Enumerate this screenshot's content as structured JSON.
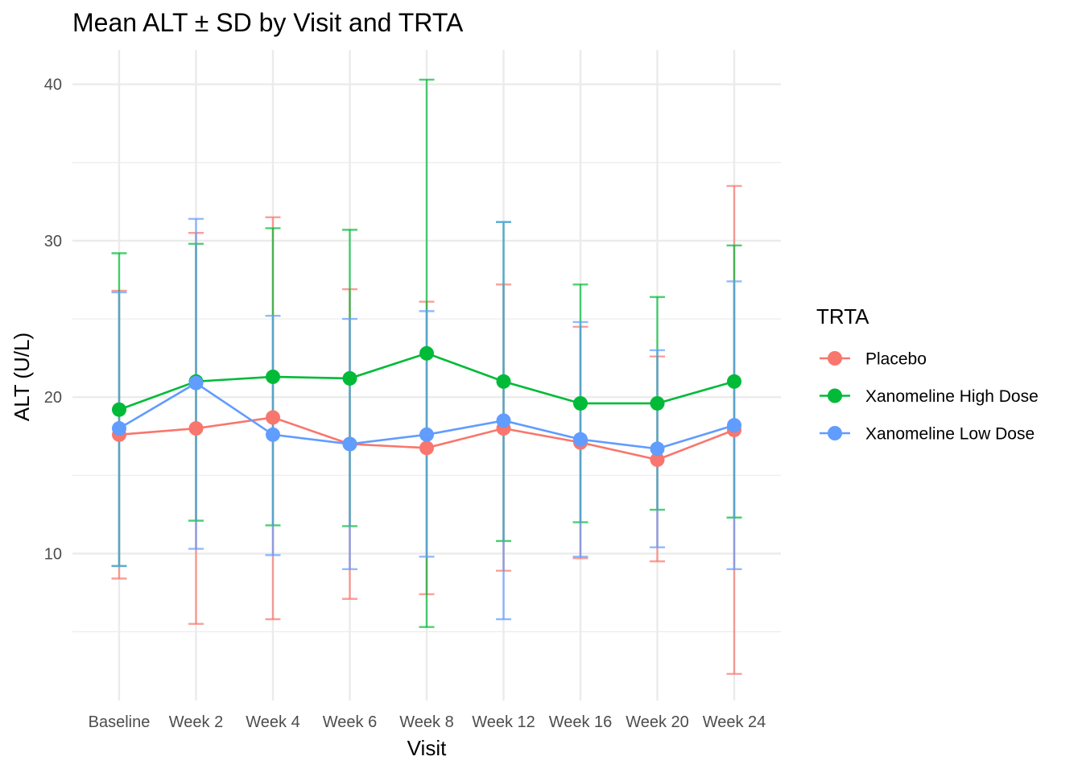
{
  "chart_data": {
    "type": "line",
    "title": "Mean ALT ± SD by Visit and TRTA",
    "xlabel": "Visit",
    "ylabel": "ALT (U/L)",
    "categories": [
      "Baseline",
      "Week 2",
      "Week 4",
      "Week 6",
      "Week 8",
      "Week 12",
      "Week 16",
      "Week 20",
      "Week 24"
    ],
    "ylim": [
      0.6,
      42.2
    ],
    "y_major_ticks": [
      10,
      20,
      30,
      40
    ],
    "y_minor_ticks": [
      5,
      15,
      25,
      35
    ],
    "grid": true,
    "error_bars": "mean ± SD",
    "legend": {
      "title": "TRTA",
      "position": "right"
    },
    "series": [
      {
        "name": "Placebo",
        "color": "#F8766D",
        "mean": [
          17.6,
          18.0,
          18.7,
          17.0,
          16.75,
          18.0,
          17.1,
          16.0,
          17.9
        ],
        "upper": [
          26.8,
          30.5,
          31.5,
          26.9,
          26.1,
          27.2,
          24.5,
          22.6,
          33.5
        ],
        "lower": [
          8.4,
          5.5,
          5.8,
          7.1,
          7.4,
          8.9,
          9.7,
          9.5,
          2.3
        ]
      },
      {
        "name": "Xanomeline High Dose",
        "color": "#00BA38",
        "mean": [
          19.2,
          21.0,
          21.3,
          21.2,
          22.8,
          21.0,
          19.6,
          19.6,
          21.0
        ],
        "upper": [
          29.2,
          29.8,
          30.8,
          30.7,
          40.3,
          31.2,
          27.2,
          26.4,
          29.7
        ],
        "lower": [
          9.2,
          12.1,
          11.8,
          11.75,
          5.3,
          10.8,
          12.0,
          12.8,
          12.3
        ]
      },
      {
        "name": "Xanomeline Low Dose",
        "color": "#619CFF",
        "mean": [
          18.0,
          20.9,
          17.6,
          17.0,
          17.6,
          18.5,
          17.3,
          16.7,
          18.2
        ],
        "upper": [
          26.7,
          31.4,
          25.2,
          25.0,
          25.5,
          31.2,
          24.8,
          23.0,
          27.4
        ],
        "lower": [
          9.2,
          10.3,
          9.9,
          9.0,
          9.8,
          5.8,
          9.8,
          10.4,
          9.0
        ]
      }
    ]
  }
}
